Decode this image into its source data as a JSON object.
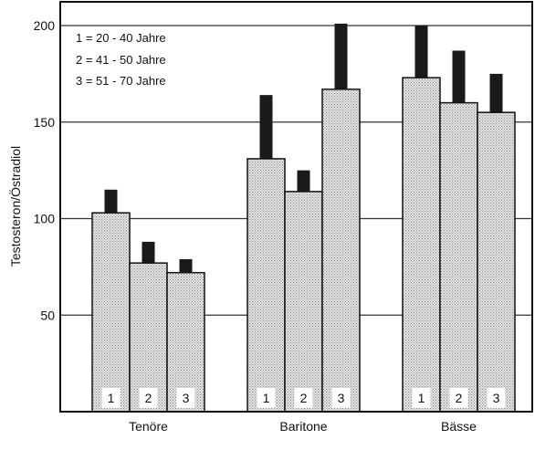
{
  "chart_data": {
    "type": "bar",
    "title": "",
    "xlabel": "",
    "ylabel": "Testosteron/Östradiol",
    "ylim": [
      0,
      210
    ],
    "yticks": [
      50,
      100,
      150,
      200
    ],
    "grid": true,
    "legend_position": "top-left",
    "legend": [
      "1 = 20 - 40 Jahre",
      "2 = 41 - 50 Jahre",
      "3 = 51 - 70 Jahre"
    ],
    "categories": [
      "Tenöre",
      "Baritone",
      "Bässe"
    ],
    "bar_labels": [
      "1",
      "2",
      "3"
    ],
    "series": [
      {
        "name": "1 = 20 - 40 Jahre",
        "values": [
          103,
          131,
          173
        ],
        "error_upper": [
          115,
          164,
          200
        ]
      },
      {
        "name": "2 = 41 - 50 Jahre",
        "values": [
          77,
          114,
          160
        ],
        "error_upper": [
          88,
          125,
          187
        ]
      },
      {
        "name": "3 = 51 - 70 Jahre",
        "values": [
          72,
          167,
          155
        ],
        "error_upper": [
          79,
          201,
          175
        ]
      }
    ]
  }
}
